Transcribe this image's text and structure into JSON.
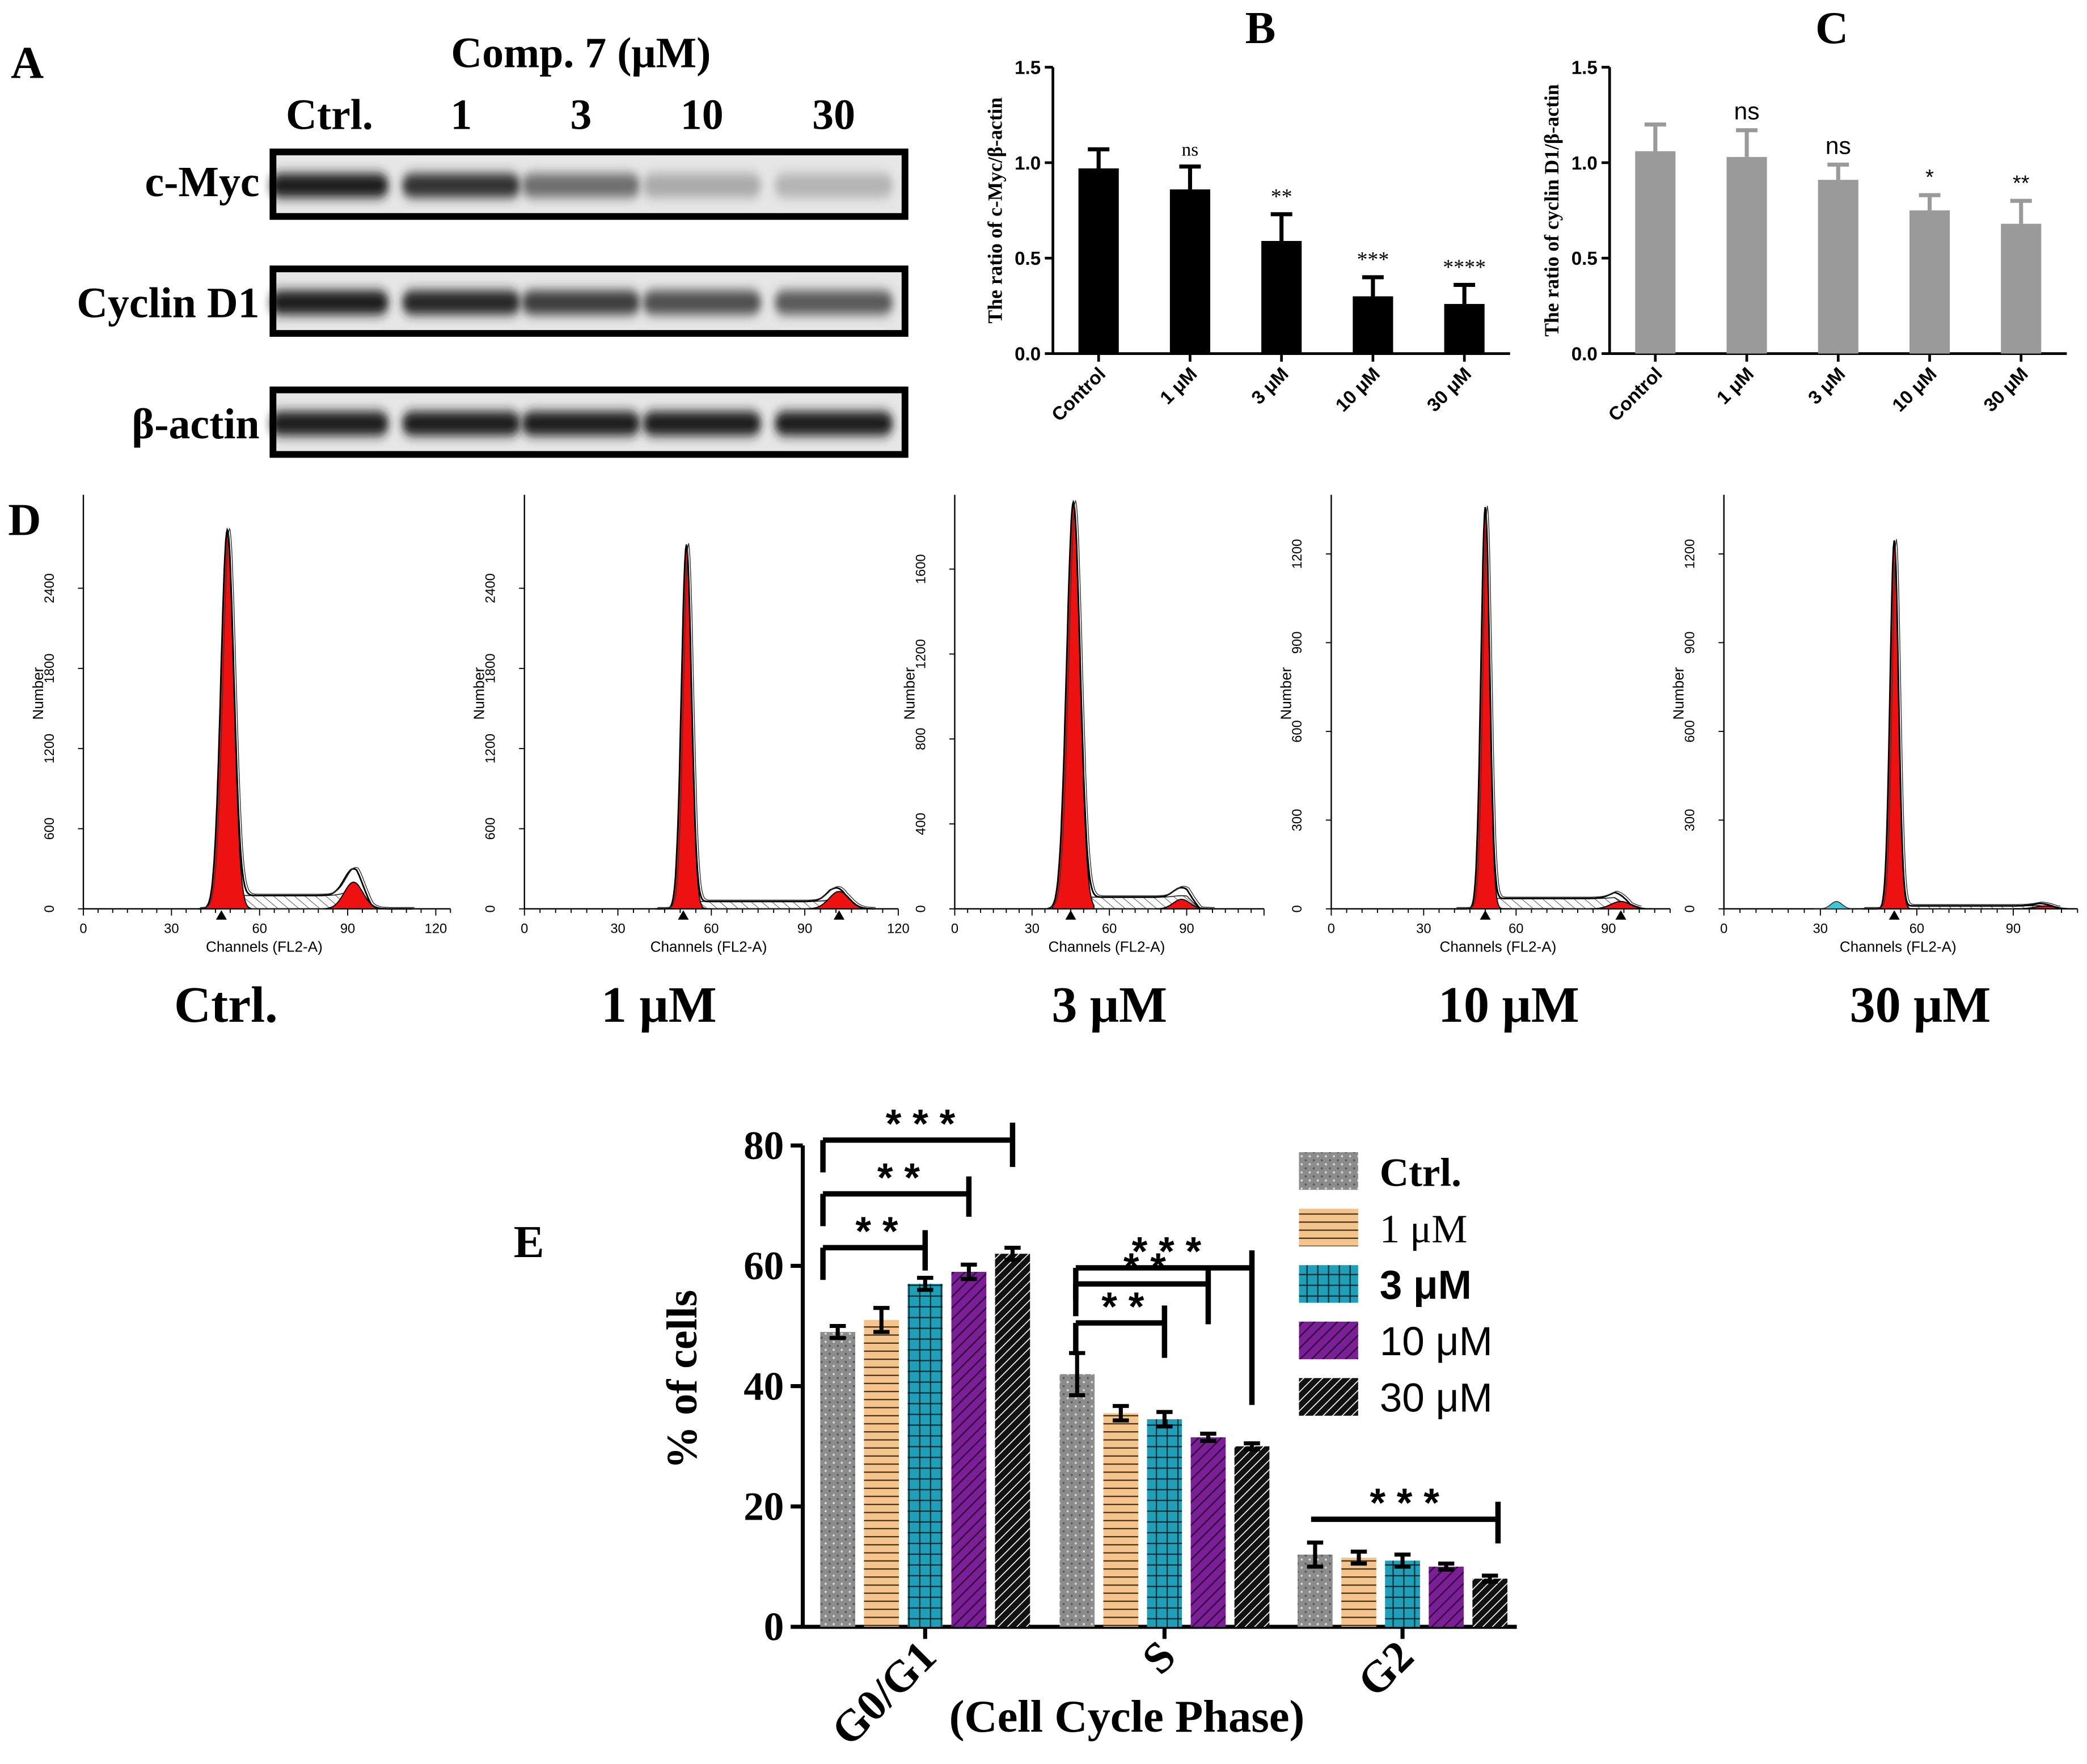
{
  "panels": {
    "A": {
      "letter": "A",
      "header": "Comp. 7 (μM)",
      "lanes": [
        "Ctrl.",
        "1",
        "3",
        "10",
        "30"
      ],
      "rows": [
        {
          "label": "c-Myc",
          "intensity": [
            1.0,
            0.9,
            0.6,
            0.3,
            0.25
          ]
        },
        {
          "label": "Cyclin D1",
          "intensity": [
            1.0,
            0.95,
            0.85,
            0.75,
            0.7
          ]
        },
        {
          "label": "β-actin",
          "intensity": [
            1.0,
            1.0,
            1.0,
            1.0,
            1.0
          ]
        }
      ]
    },
    "B": {
      "letter": "B"
    },
    "C": {
      "letter": "C"
    },
    "D": {
      "letter": "D"
    },
    "E": {
      "letter": "E"
    }
  },
  "colors": {
    "bar_black": "#000000",
    "bar_gray": "#9a9a9a",
    "peak_red": "#ee1111",
    "ctrl_gray": "#8c8c8c",
    "orange": "#f5c38c",
    "teal": "#1fa0b8",
    "purple": "#7a1f96",
    "black": "#111111"
  },
  "chart_data": [
    {
      "id": "B",
      "type": "bar",
      "ylabel": "The ratio of c-Myc/β-actin",
      "categories": [
        "Control",
        "1 μM",
        "3 μM",
        "10 μM",
        "30 μM"
      ],
      "values": [
        0.97,
        0.86,
        0.59,
        0.3,
        0.26
      ],
      "errors": [
        0.1,
        0.12,
        0.14,
        0.1,
        0.1
      ],
      "annotations": [
        "",
        "ns",
        "**",
        "***",
        "****"
      ],
      "ylim": [
        0,
        1.5
      ],
      "yticks": [
        "0.0",
        "0.5",
        "1.0",
        "1.5"
      ],
      "color": "#000000"
    },
    {
      "id": "C",
      "type": "bar",
      "ylabel": "The ratio of cyclin D1/β-actin",
      "categories": [
        "Control",
        "1 μM",
        "3 μM",
        "10 μM",
        "30 μM"
      ],
      "values": [
        1.06,
        1.03,
        0.91,
        0.75,
        0.68
      ],
      "errors": [
        0.14,
        0.14,
        0.08,
        0.08,
        0.12
      ],
      "annotations": [
        "",
        "ns",
        "ns",
        "*",
        "**"
      ],
      "ylim": [
        0,
        1.5
      ],
      "yticks": [
        "0.0",
        "0.5",
        "1.0",
        "1.5"
      ],
      "color": "#9a9a9a"
    },
    {
      "id": "D",
      "type": "area",
      "xlabel": "Channels (FL2-A)",
      "ylabel": "Number",
      "histograms": [
        {
          "label": "Ctrl.",
          "xmax": 125,
          "xticks": [
            "0",
            "30",
            "60",
            "90",
            "120"
          ],
          "ymax": 3100,
          "yticks": [
            [
              0,
              "0"
            ],
            [
              600,
              "600"
            ],
            [
              1200,
              "1200"
            ],
            [
              1800,
              "1800"
            ],
            [
              2400,
              "2400"
            ]
          ],
          "g1_pos": 49,
          "g1_height": 2800,
          "g1_sd": 2.2,
          "g2_pos": 92,
          "g2_height": 200,
          "s_level": 100,
          "s_end": 95,
          "x_end": 112,
          "markers": [
            47
          ],
          "cyan": false
        },
        {
          "label": "1 μM",
          "xmax": 120,
          "xticks": [
            "0",
            "30",
            "60",
            "90",
            "120"
          ],
          "ymax": 3100,
          "yticks": [
            [
              0,
              "0"
            ],
            [
              600,
              "600"
            ],
            [
              1200,
              "1200"
            ],
            [
              1800,
              "1800"
            ],
            [
              2400,
              "2400"
            ]
          ],
          "g1_pos": 52,
          "g1_height": 2700,
          "g1_sd": 1.6,
          "g2_pos": 101,
          "g2_height": 130,
          "s_level": 55,
          "s_end": 100,
          "x_end": 112,
          "markers": [
            51,
            101
          ],
          "cyan": false
        },
        {
          "label": "3 μM",
          "xmax": 120,
          "xticks": [
            "0",
            "30",
            "60",
            "90"
          ],
          "ymax": 1950,
          "yticks": [
            [
              0,
              "0"
            ],
            [
              400,
              "400"
            ],
            [
              800,
              "800"
            ],
            [
              1200,
              "1200"
            ],
            [
              1600,
              "1600"
            ]
          ],
          "g1_pos": 46,
          "g1_height": 1900,
          "g1_sd": 2.6,
          "g2_pos": 88,
          "g2_height": 45,
          "s_level": 55,
          "s_end": 92,
          "x_end": 100,
          "markers": [
            45
          ],
          "cyan": false
        },
        {
          "label": "10 μM",
          "xmax": 110,
          "xticks": [
            "0",
            "30",
            "60",
            "90"
          ],
          "ymax": 1400,
          "yticks": [
            [
              0,
              "0"
            ],
            [
              300,
              "300"
            ],
            [
              600,
              "600"
            ],
            [
              900,
              "900"
            ],
            [
              1200,
              "1200"
            ]
          ],
          "g1_pos": 50,
          "g1_height": 1340,
          "g1_sd": 1.4,
          "g2_pos": 94,
          "g2_height": 25,
          "s_level": 35,
          "s_end": 94,
          "x_end": 100,
          "markers": [
            50,
            94
          ],
          "cyan": false
        },
        {
          "label": "30 μM",
          "xmax": 110,
          "xticks": [
            "0",
            "30",
            "60",
            "90"
          ],
          "ymax": 1400,
          "yticks": [
            [
              0,
              "0"
            ],
            [
              300,
              "300"
            ],
            [
              600,
              "600"
            ],
            [
              900,
              "900"
            ],
            [
              1200,
              "1200"
            ]
          ],
          "g1_pos": 53,
          "g1_height": 1240,
          "g1_sd": 1.3,
          "g2_pos": 100,
          "g2_height": 10,
          "s_level": 10,
          "s_end": 100,
          "x_end": 104,
          "markers": [
            53
          ],
          "cyan": true
        }
      ]
    },
    {
      "id": "E",
      "type": "bar",
      "xlabel": "(Cell Cycle Phase)",
      "ylabel": "% of cells",
      "categories": [
        "G0/G1",
        "S",
        "G2"
      ],
      "ylim": [
        0,
        80
      ],
      "yticks": [
        "0",
        "20",
        "40",
        "60",
        "80"
      ],
      "series": [
        {
          "name": "Ctrl.",
          "values": [
            49,
            42,
            12
          ],
          "errors": [
            1.0,
            3.5,
            2.0
          ],
          "color": "#8c8c8c",
          "pattern": "dots"
        },
        {
          "name": "1 μM",
          "values": [
            51,
            35.5,
            11.5
          ],
          "errors": [
            2.0,
            1.2,
            1.0
          ],
          "color": "#f5c38c",
          "pattern": "hlines"
        },
        {
          "name": "3 μM",
          "values": [
            57,
            34.5,
            11
          ],
          "errors": [
            1.0,
            1.2,
            1.0
          ],
          "color": "#1fa0b8",
          "pattern": "grid"
        },
        {
          "name": "10 μM",
          "values": [
            59,
            31.5,
            10
          ],
          "errors": [
            1.2,
            0.6,
            0.5
          ],
          "color": "#7a1f96",
          "pattern": "diag"
        },
        {
          "name": "30 μM",
          "values": [
            62,
            30,
            8
          ],
          "errors": [
            1.0,
            0.5,
            0.5
          ],
          "color": "#111111",
          "pattern": "diag-dense"
        }
      ],
      "significance": [
        {
          "group": 0,
          "to": 2,
          "label": "**"
        },
        {
          "group": 0,
          "to": 3,
          "label": "**"
        },
        {
          "group": 0,
          "to": 4,
          "label": "***"
        },
        {
          "group": 1,
          "to": 2,
          "label": "**"
        },
        {
          "group": 1,
          "to": 3,
          "label": "**"
        },
        {
          "group": 1,
          "to": 4,
          "label": "***"
        },
        {
          "group": 2,
          "to": 4,
          "label": "***"
        }
      ]
    }
  ]
}
